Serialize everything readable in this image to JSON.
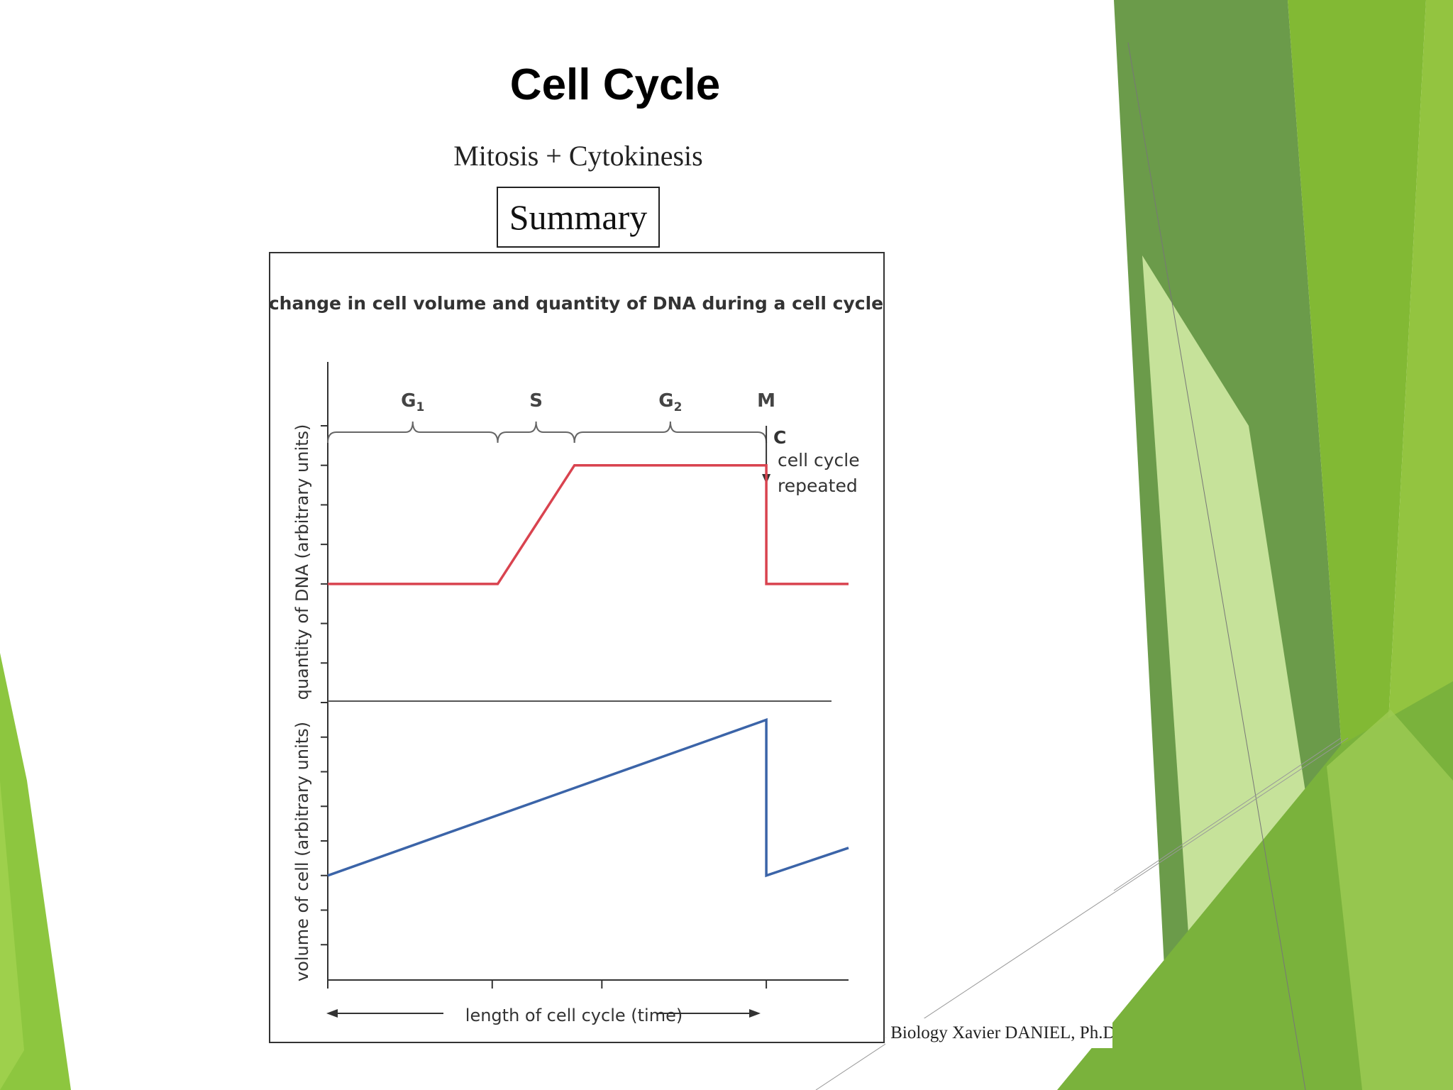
{
  "slide": {
    "title": "Cell Cycle",
    "subtitle": "Mitosis + Cytokinesis",
    "box_label": "Summary",
    "credit": "l Biology Xavier DANIEL, Ph.D."
  },
  "theme": {
    "accent_green": "#8dc63f",
    "dark_green": "#6a9a47",
    "light_green": "#c6e29a"
  },
  "chart_data": {
    "type": "line",
    "title": "change in cell volume and quantity of DNA during a cell cycle",
    "xlabel": "length of cell cycle (time)",
    "phases": [
      {
        "label": "G",
        "sub": "1",
        "start": 0.0,
        "end": 3.1
      },
      {
        "label": "S",
        "sub": "",
        "start": 3.1,
        "end": 4.5
      },
      {
        "label": "G",
        "sub": "2",
        "start": 4.5,
        "end": 8.0
      },
      {
        "label": "M",
        "sub": "",
        "start": 8.0,
        "end": 8.0
      }
    ],
    "c_label": "C",
    "annotation": [
      "cell cycle",
      "repeated"
    ],
    "xlim": [
      0,
      9.5
    ],
    "panels": [
      {
        "ylabel": "quantity of DNA (arbitrary units)",
        "ylim": [
          0,
          7
        ],
        "color": "#d9434f",
        "points": [
          [
            0,
            3
          ],
          [
            3.1,
            3
          ],
          [
            4.5,
            6
          ],
          [
            8.0,
            6
          ],
          [
            8.0,
            3
          ],
          [
            9.5,
            3
          ]
        ]
      },
      {
        "ylabel": "volume of cell (arbitrary units)",
        "ylim": [
          0,
          8
        ],
        "color": "#3b64a8",
        "points": [
          [
            0,
            3
          ],
          [
            8.0,
            7.5
          ],
          [
            8.0,
            3
          ],
          [
            9.5,
            3.8
          ]
        ]
      }
    ]
  }
}
